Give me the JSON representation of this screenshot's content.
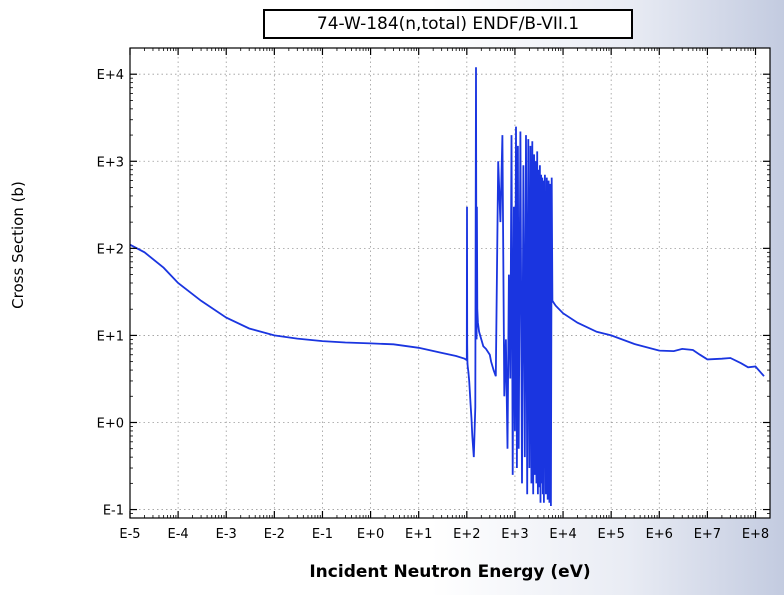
{
  "chart_data": {
    "type": "line",
    "title": "74-W-184(n,total) ENDF/B-VII.1",
    "xlabel": "Incident Neutron Energy (eV)",
    "ylabel": "Cross Section (b)",
    "x_scale": "log",
    "y_scale": "log",
    "xlim": [
      1e-05,
      200000000.0
    ],
    "ylim": [
      0.08,
      20000
    ],
    "x_ticks": [
      "E-5",
      "E-4",
      "E-3",
      "E-2",
      "E-1",
      "E+0",
      "E+1",
      "E+2",
      "E+3",
      "E+4",
      "E+5",
      "E+6",
      "E+7",
      "E+8"
    ],
    "y_ticks": [
      "E-1",
      "E+0",
      "E+1",
      "E+2",
      "E+3",
      "E+4"
    ],
    "grid": true,
    "legend": "none",
    "series": [
      {
        "color": "#1a35e0",
        "x": [
          1e-05,
          2e-05,
          5e-05,
          0.0001,
          0.0003,
          0.001,
          0.003,
          0.01,
          0.03,
          0.1,
          0.3,
          1,
          3,
          10,
          30,
          60,
          90,
          100,
          101,
          102,
          103,
          104,
          105,
          108,
          112,
          116,
          120,
          125,
          130,
          140,
          150,
          155,
          158,
          160,
          162,
          165,
          170,
          180,
          200,
          220,
          250,
          300,
          320,
          360,
          400,
          450,
          500,
          550,
          600,
          650,
          700,
          750,
          800,
          850,
          900,
          950,
          1000,
          1050,
          1100,
          1150,
          1200,
          1300,
          1400,
          1500,
          1600,
          1700,
          1800,
          1900,
          2000,
          2100,
          2200,
          2300,
          2400,
          2500,
          2600,
          2700,
          2800,
          2900,
          3000,
          3100,
          3200,
          3300,
          3400,
          3500,
          3600,
          3700,
          3800,
          3900,
          4000,
          4200,
          4400,
          4600,
          4800,
          5000,
          5200,
          5400,
          5600,
          5800,
          6000,
          7000,
          10000.0,
          20000.0,
          50000.0,
          100000.0,
          300000.0,
          1000000.0,
          2000000.0,
          3000000.0,
          5000000.0,
          7000000.0,
          10000000.0,
          20000000.0,
          30000000.0,
          50000000.0,
          70000000.0,
          100000000.0,
          150000000.0
        ],
        "y": [
          110,
          90,
          60,
          40,
          25,
          16,
          12,
          10,
          9.2,
          8.6,
          8.3,
          8.1,
          7.9,
          7.2,
          6.3,
          5.8,
          5.4,
          5.2,
          300,
          8,
          5.0,
          4.6,
          4.3,
          3.8,
          3.0,
          2.2,
          1.6,
          1.1,
          0.7,
          0.4,
          1.5,
          12000,
          25,
          9,
          300,
          20,
          14,
          11,
          9,
          7.5,
          7,
          6,
          5,
          4,
          3.4,
          1000,
          200,
          2000,
          2,
          9,
          0.5,
          50,
          3.2,
          2000,
          0.25,
          300,
          0.8,
          2500,
          0.3,
          1500,
          0.5,
          2200,
          0.2,
          900,
          0.4,
          2000,
          0.15,
          1800,
          0.3,
          1500,
          0.2,
          1700,
          0.15,
          1200,
          0.25,
          1000,
          0.2,
          1300,
          0.15,
          800,
          0.18,
          900,
          0.12,
          700,
          0.2,
          650,
          0.15,
          600,
          0.12,
          700,
          0.15,
          650,
          0.13,
          600,
          0.12,
          550,
          0.11,
          650,
          25,
          22,
          18,
          14,
          11,
          10,
          8,
          6.7,
          6.6,
          7.0,
          6.8,
          6.0,
          5.3,
          5.4,
          5.5,
          4.8,
          4.3,
          4.4,
          3.4
        ]
      }
    ]
  }
}
